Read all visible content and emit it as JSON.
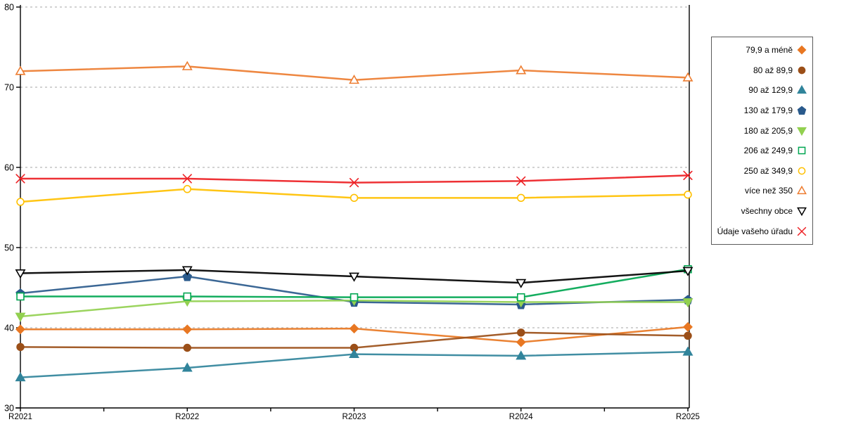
{
  "chart_data": {
    "type": "line",
    "title": "",
    "xlabel": "",
    "ylabel": "",
    "categories": [
      "R2021",
      "R2022",
      "R2023",
      "R2024",
      "R2025"
    ],
    "ylim": [
      30,
      80
    ],
    "ytick_step": 10,
    "yticks": [
      80,
      70,
      60,
      50,
      40,
      30
    ],
    "grid": "horizontal-dashed",
    "grid_color": "#b8b8b8",
    "axis_color": "#000000",
    "legend_position": "right",
    "series": [
      {
        "name": "79,9 a méně",
        "marker": "diamond",
        "filled": true,
        "color": "#E87722",
        "values": [
          39.8,
          39.8,
          39.9,
          38.2,
          40.1
        ]
      },
      {
        "name": "80 až 89,9",
        "marker": "circle",
        "filled": true,
        "color": "#9B4F18",
        "values": [
          37.6,
          37.5,
          37.5,
          39.4,
          39.0
        ]
      },
      {
        "name": "90 až 129,9",
        "marker": "triangle-up",
        "filled": true,
        "color": "#31849B",
        "values": [
          33.8,
          35.0,
          36.7,
          36.5,
          37.0
        ]
      },
      {
        "name": "130 až 179,9",
        "marker": "pentagon",
        "filled": true,
        "color": "#2A5A8C",
        "values": [
          44.3,
          46.4,
          43.2,
          42.9,
          43.5
        ]
      },
      {
        "name": "180 až 205,9",
        "marker": "triangle-down",
        "filled": true,
        "color": "#92D050",
        "values": [
          41.4,
          43.3,
          43.4,
          43.2,
          43.2
        ]
      },
      {
        "name": "206 až 249,9",
        "marker": "square",
        "filled": false,
        "color": "#00A651",
        "values": [
          43.9,
          43.9,
          43.8,
          43.8,
          47.3
        ]
      },
      {
        "name": "250 až 349,9",
        "marker": "circle",
        "filled": false,
        "color": "#FFC000",
        "values": [
          55.7,
          57.3,
          56.2,
          56.2,
          56.6
        ]
      },
      {
        "name": "více než 350",
        "marker": "triangle-up",
        "filled": false,
        "color": "#ED7D31",
        "values": [
          72.0,
          72.6,
          70.9,
          72.1,
          71.2
        ]
      },
      {
        "name": "všechny obce",
        "marker": "triangle-down",
        "filled": false,
        "color": "#000000",
        "values": [
          46.8,
          47.2,
          46.4,
          45.6,
          47.1
        ]
      },
      {
        "name": "Údaje vašeho úřadu",
        "marker": "x",
        "filled": false,
        "color": "#ED2024",
        "values": [
          58.6,
          58.6,
          58.1,
          58.3,
          59.0
        ]
      }
    ]
  }
}
